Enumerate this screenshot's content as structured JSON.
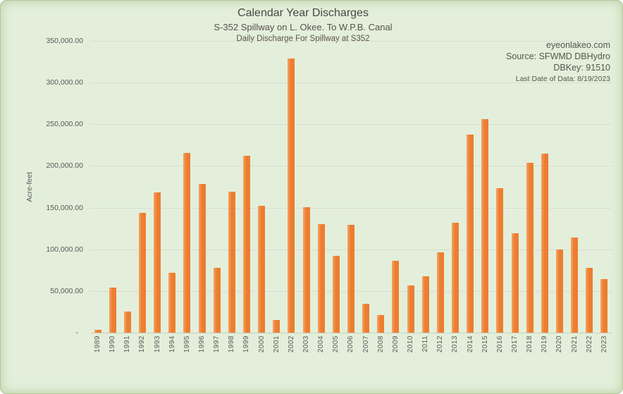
{
  "chart": {
    "title": "Calendar Year Discharges",
    "subtitle1": "S-352 Spillway on L. Okee. To W.P.B. Canal",
    "subtitle2": "Daily Discharge For Spillway at S352",
    "info": {
      "website": "eyeonlakeo.com",
      "source": "Source: SFWMD DBHydro",
      "dbkey": "DBKey: 91510",
      "last_date": "Last Date of Data: 8/19/2023"
    },
    "y_axis_title": "Acre-feet"
  },
  "chart_data": {
    "type": "bar",
    "title": "Calendar Year Discharges",
    "subtitle": "S-352 Spillway on L. Okee. To W.P.B. Canal — Daily Discharge For Spillway at S352",
    "xlabel": "",
    "ylabel": "Acre-feet",
    "ylim": [
      0,
      350000
    ],
    "grid": true,
    "legend": false,
    "y_tick_labels": [
      "350,000.00",
      "300,000.00",
      "250,000.00",
      "200,000.00",
      "150,000.00",
      "100,000.00",
      "50,000.00",
      "-"
    ],
    "categories": [
      "1989",
      "1990",
      "1991",
      "1992",
      "1993",
      "1994",
      "1995",
      "1996",
      "1997",
      "1998",
      "1999",
      "2000",
      "2001",
      "2002",
      "2003",
      "2004",
      "2005",
      "2006",
      "2007",
      "2008",
      "2009",
      "2010",
      "2011",
      "2012",
      "2013",
      "2014",
      "2015",
      "2016",
      "2017",
      "2018",
      "2019",
      "2020",
      "2021",
      "2022",
      "2023"
    ],
    "values": [
      3500,
      54500,
      25500,
      144000,
      168500,
      72000,
      215500,
      178000,
      78000,
      169500,
      212500,
      152000,
      15500,
      329000,
      150500,
      130500,
      92000,
      129000,
      35000,
      21500,
      86000,
      57000,
      68000,
      96500,
      132000,
      237500,
      256000,
      173000,
      119500,
      203500,
      215000,
      100000,
      114500,
      78000,
      64500
    ]
  },
  "colors": {
    "background": "#e3efda",
    "frame_edge": "#b3c89e",
    "bar": "#ed7d31",
    "bar_highlight": "#f5a567",
    "gridline": "#d9dcd2",
    "text": "#595959"
  }
}
